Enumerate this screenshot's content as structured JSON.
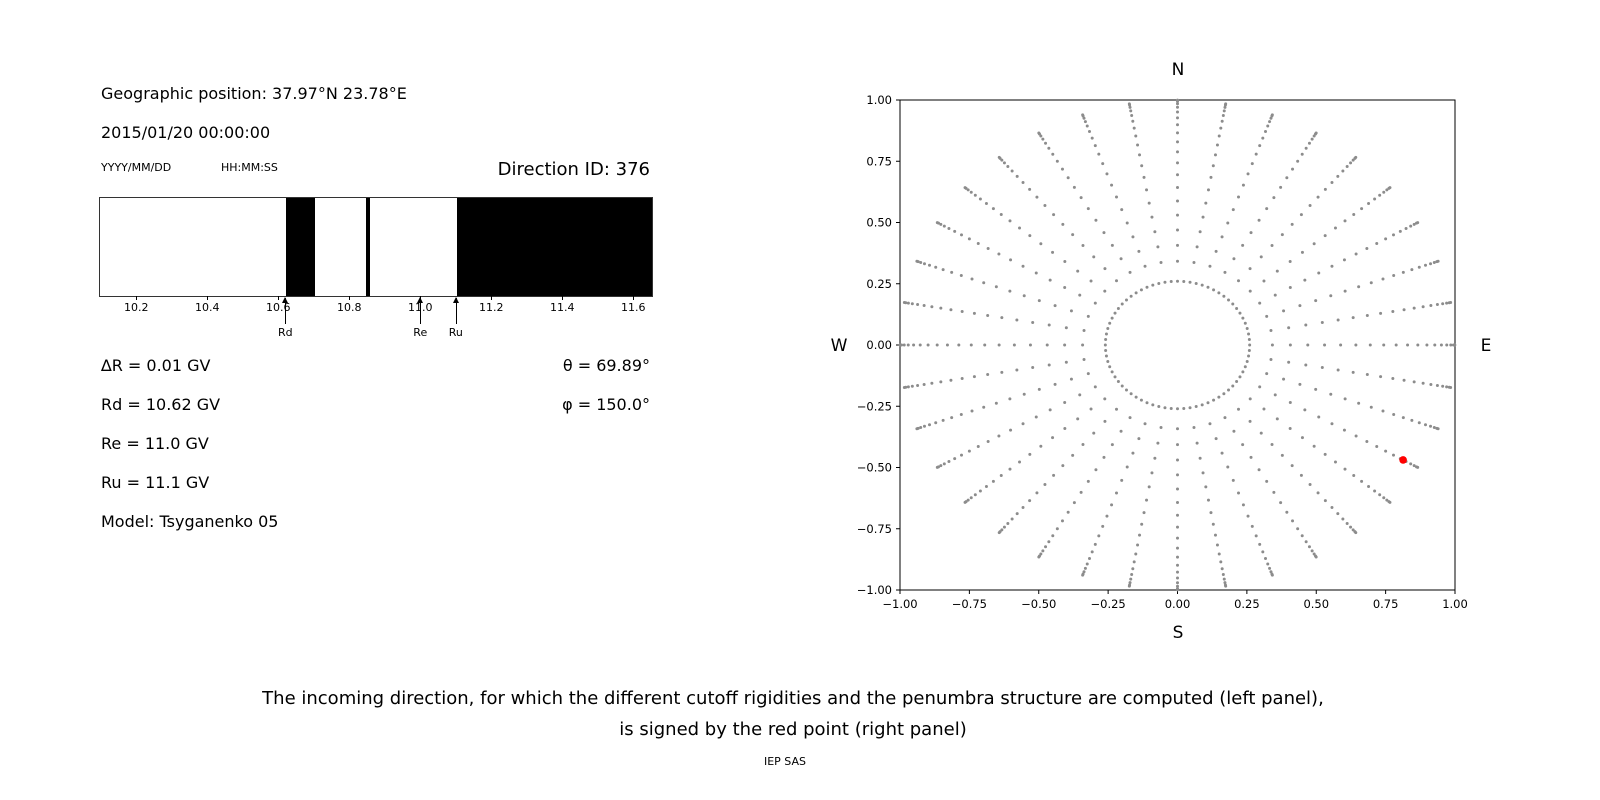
{
  "page": {
    "background": "#ffffff",
    "caption_line1": "The incoming direction, for which the different cutoff rigidities and the penumbra structure are computed (left panel),",
    "caption_line2": "is signed by the red point (right panel)",
    "credit": "IEP SAS"
  },
  "left_panel": {
    "geo_position": "Geographic position: 37.97°N 23.78°E",
    "datetime": "2015/01/20 00:00:00",
    "date_format_hint": "YYYY/MM/DD",
    "time_format_hint": "HH:MM:SS",
    "direction_id": "Direction ID: 376",
    "delta_r": "∆R = 0.01 GV",
    "rd": "Rd = 10.62 GV",
    "re": "Re = 11.0 GV",
    "ru": "Ru = 11.1 GV",
    "model": "Model: Tsyganenko 05",
    "theta": "θ = 69.89°",
    "phi": "φ = 150.0°"
  },
  "chart_data": [
    {
      "type": "bar",
      "name": "penumbra-structure",
      "x_range": [
        10.095,
        11.65
      ],
      "x_ticks": [
        10.2,
        10.4,
        10.6,
        10.8,
        11.0,
        11.2,
        11.4,
        11.6
      ],
      "black_segments": [
        [
          10.62,
          10.7
        ],
        [
          10.845,
          10.855
        ],
        [
          11.1,
          11.65
        ]
      ],
      "markers": [
        {
          "label": "Rd",
          "x": 10.62
        },
        {
          "label": "Re",
          "x": 11.0
        },
        {
          "label": "Ru",
          "x": 11.1
        }
      ]
    },
    {
      "type": "scatter",
      "name": "incoming-directions",
      "xlim": [
        -1.0,
        1.0
      ],
      "ylim": [
        -1.0,
        1.0
      ],
      "x_ticks": [
        -1.0,
        -0.75,
        -0.5,
        -0.25,
        0.0,
        0.25,
        0.5,
        0.75,
        1.0
      ],
      "y_ticks": [
        -1.0,
        -0.75,
        -0.5,
        -0.25,
        0.0,
        0.25,
        0.5,
        0.75,
        1.0
      ],
      "compass": {
        "top": "N",
        "right": "E",
        "bottom": "S",
        "left": "W"
      },
      "grid_points": {
        "color": "#8c8c8c",
        "inner_ring_radius": 0.26,
        "inner_ring_points": 72,
        "spoke_count": 36,
        "zenith_deg_start": 20,
        "zenith_deg_end": 88,
        "zenith_deg_step": 4,
        "radius_rule": "r = sin(zenith)"
      },
      "red_point": {
        "x": 0.813,
        "y": -0.469,
        "color": "#ff0000"
      }
    }
  ]
}
